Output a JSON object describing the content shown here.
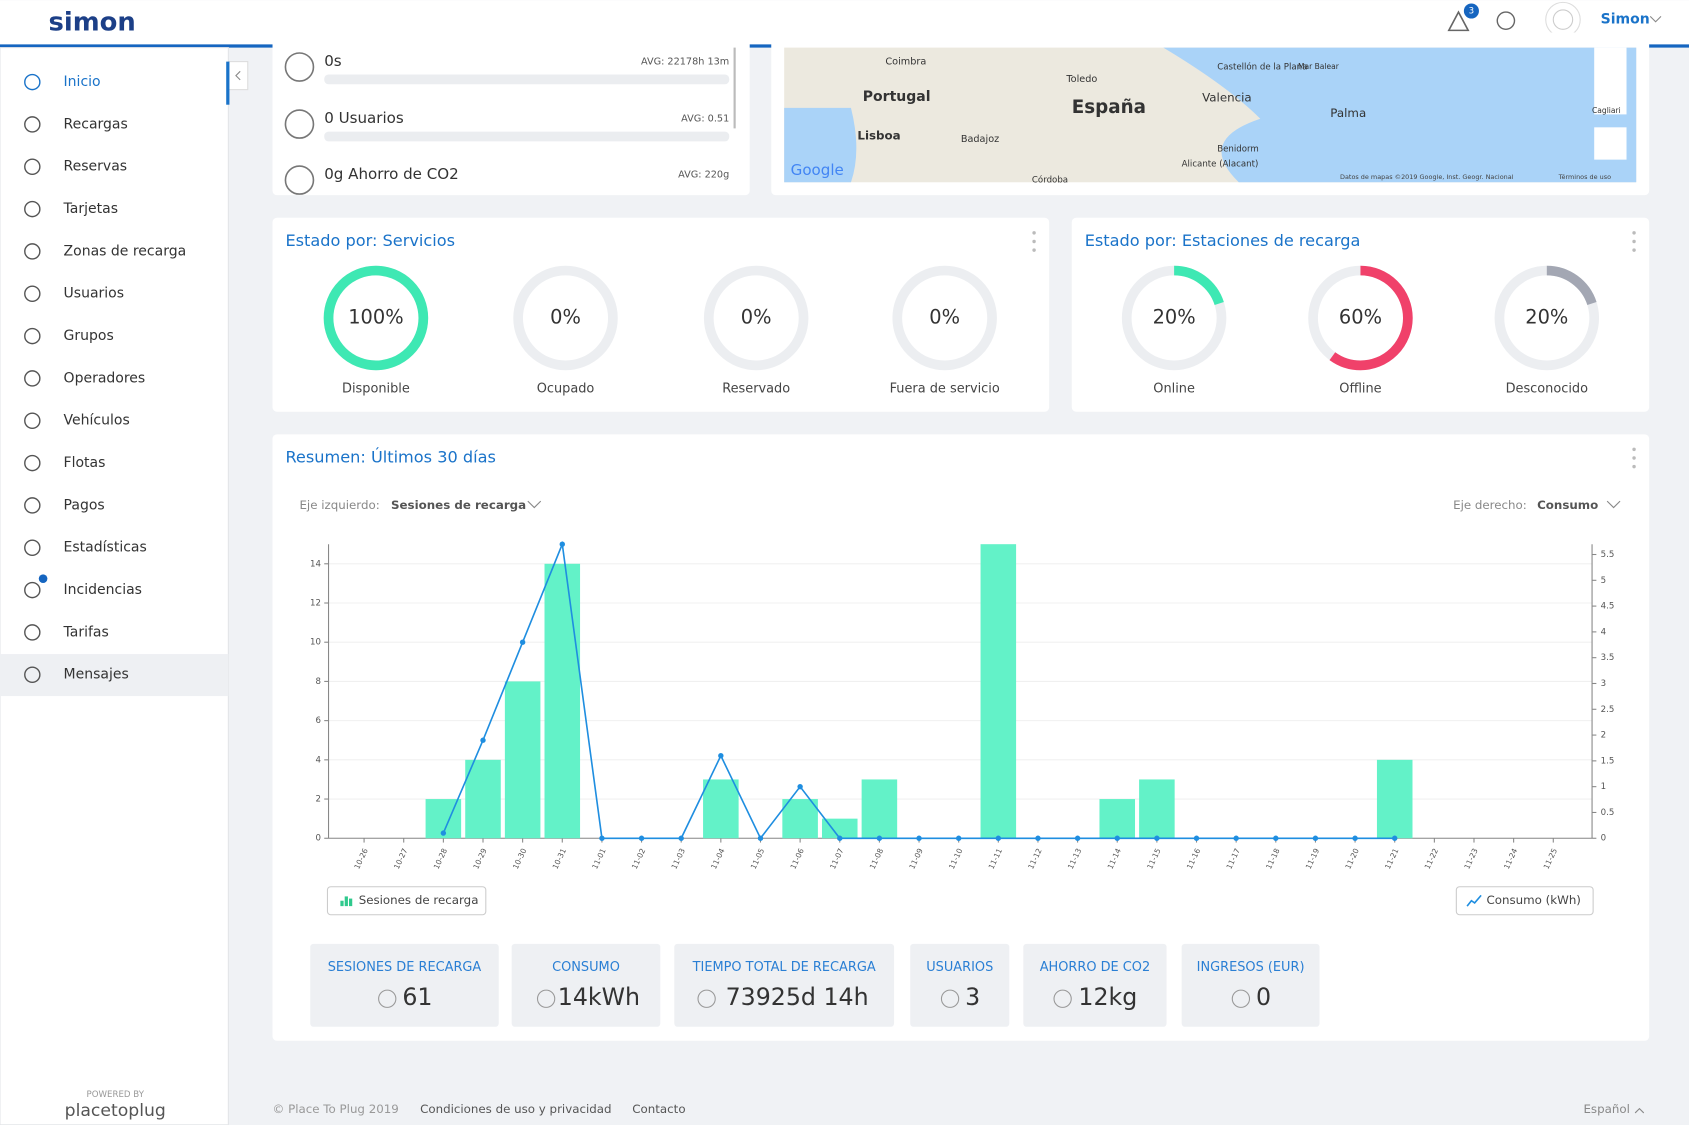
{
  "header": {
    "logo": "simon",
    "notifications": "3",
    "user": "Simon"
  },
  "sidebar": {
    "items": [
      "Inicio",
      "Recargas",
      "Reservas",
      "Tarjetas",
      "Zonas de recarga",
      "Usuarios",
      "Grupos",
      "Operadores",
      "Vehículos",
      "Flotas",
      "Pagos",
      "Estadísticas",
      "Incidencias",
      "Tarifas",
      "Mensajes"
    ],
    "powered_by": "POWERED BY",
    "brand": "placetoplug"
  },
  "metrics": [
    {
      "value": "0s",
      "avg": "AVG: 22178h 13m"
    },
    {
      "value": "0 Usuarios",
      "avg": "AVG: 0.51"
    },
    {
      "value": "0g Ahorro de CO2",
      "avg": "AVG: 220g"
    }
  ],
  "map": {
    "labels": [
      "Coimbra",
      "Portugal",
      "España",
      "Valencia",
      "Lisboa",
      "Badajoz",
      "Palma",
      "Toledo",
      "Castellón de la Plana",
      "Alicante (Alacant)",
      "Benidorm",
      "Córdoba",
      "Mar Balear",
      "Cagliari"
    ],
    "brand": "Google",
    "attribution": "Datos de mapas ©2019 Google, Inst. Geogr. Nacional",
    "terms": "Términos de uso"
  },
  "chart_data": [
    {
      "type": "donut",
      "title": "Estado por: Servicios",
      "categories": [
        "Disponible",
        "Ocupado",
        "Reservado",
        "Fuera de servicio"
      ],
      "values": [
        100,
        0,
        0,
        0
      ],
      "value_labels": [
        "100%",
        "0%",
        "0%",
        "0%"
      ],
      "colors": [
        "#3ee8b3",
        "#3ee8b3",
        "#3ee8b3",
        "#3ee8b3"
      ]
    },
    {
      "type": "donut",
      "title": "Estado por: Estaciones de recarga",
      "categories": [
        "Online",
        "Offline",
        "Desconocido"
      ],
      "values": [
        20,
        60,
        20
      ],
      "value_labels": [
        "20%",
        "60%",
        "20%"
      ],
      "colors": [
        "#3ee8b3",
        "#f0416a",
        "#a3a7b3"
      ]
    },
    {
      "type": "combo",
      "title": "Resumen: Últimos 30 días",
      "left_axis_label": "Eje izquierdo:",
      "left_axis_value": "Sesiones de recarga",
      "right_axis_label": "Eje derecho:",
      "right_axis_value": "Consumo",
      "categories": [
        "10-26",
        "10-27",
        "10-28",
        "10-29",
        "10-30",
        "10-31",
        "11-01",
        "11-02",
        "11-03",
        "11-04",
        "11-05",
        "11-06",
        "11-07",
        "11-08",
        "11-09",
        "11-10",
        "11-11",
        "11-12",
        "11-13",
        "11-14",
        "11-15",
        "11-16",
        "11-17",
        "11-18",
        "11-19",
        "11-20",
        "11-21",
        "11-22",
        "11-23",
        "11-24",
        "11-25"
      ],
      "series": [
        {
          "name": "Sesiones de recarga",
          "type": "bar",
          "color": "#63f2c8",
          "values": [
            0,
            0,
            2,
            4,
            8,
            14,
            0,
            0,
            0,
            3,
            0,
            2,
            1,
            3,
            0,
            0,
            15,
            0,
            0,
            2,
            3,
            0,
            0,
            0,
            0,
            0,
            4,
            0,
            0,
            0,
            0
          ]
        },
        {
          "name": "Consumo (kWh)",
          "type": "line",
          "axis": "y2",
          "color": "#1f8ee0",
          "values": [
            null,
            null,
            0.1,
            1.9,
            3.8,
            5.7,
            0,
            0,
            0,
            1.6,
            0,
            1.0,
            0,
            0,
            0,
            0,
            0,
            0,
            0,
            0,
            0,
            0,
            0,
            0,
            0,
            0,
            0,
            null,
            null,
            null,
            null
          ]
        }
      ],
      "ylim": [
        0,
        15
      ],
      "yticks": [
        0,
        2,
        4,
        6,
        8,
        10,
        12,
        14
      ],
      "y2lim": [
        0,
        5.7
      ],
      "y2ticks": [
        0,
        0.5,
        1,
        1.5,
        2,
        2.5,
        3,
        3.5,
        4,
        4.5,
        5,
        5.5
      ],
      "grid": true,
      "legend": "bottom"
    }
  ],
  "summary": [
    {
      "label": "SESIONES DE RECARGA",
      "value": 61
    },
    {
      "label": "CONSUMO",
      "value": "14kWh"
    },
    {
      "label": "TIEMPO TOTAL DE RECARGA",
      "value": "73925d 14h"
    },
    {
      "label": "USUARIOS",
      "value": 3
    },
    {
      "label": "AHORRO DE CO2",
      "value": "12kg"
    },
    {
      "label": "INGRESOS (EUR)",
      "value": 0
    }
  ],
  "footer": {
    "copyright": "© Place To Plug 2019",
    "terms": "Condiciones de uso y privacidad",
    "contact": "Contacto",
    "language": "Español"
  }
}
